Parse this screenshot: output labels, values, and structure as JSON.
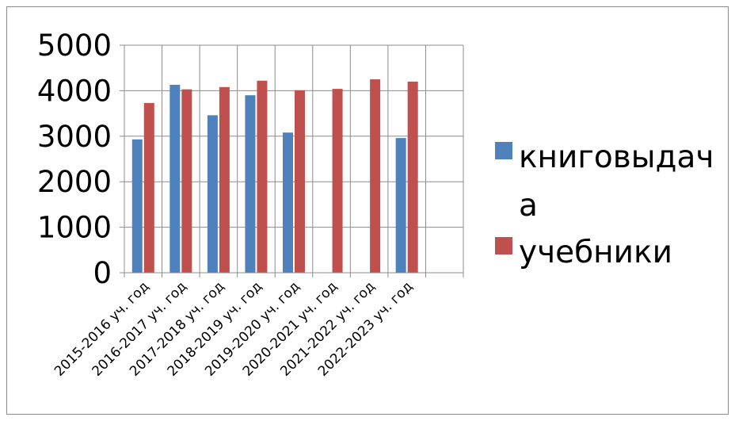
{
  "chart_data": {
    "type": "bar",
    "categories": [
      "2015-2016 уч. год",
      "2016-2017 уч. год",
      "2017-2018 уч. год",
      "2018-2019 уч. год",
      "2019-2020 уч. год",
      "2020-2021 уч. год",
      "2021-2022 уч. год",
      "2022-2023 уч. год",
      ""
    ],
    "series": [
      {
        "name": "книговыдача",
        "color": "#4f81bd",
        "values": [
          2930,
          4130,
          3460,
          3900,
          3080,
          null,
          null,
          2960,
          null
        ]
      },
      {
        "name": "учебники",
        "color": "#c0504d",
        "values": [
          3730,
          4030,
          4080,
          4220,
          4010,
          4040,
          4250,
          4200,
          null
        ]
      }
    ],
    "title": "",
    "xlabel": "",
    "ylabel": "",
    "ylim": [
      0,
      5000
    ],
    "yticks": [
      0,
      1000,
      2000,
      3000,
      4000,
      5000
    ],
    "grid": true,
    "legend_position": "right",
    "legend_label_lines": [
      [
        "книговыдач",
        "а"
      ],
      [
        "учебники"
      ]
    ]
  }
}
